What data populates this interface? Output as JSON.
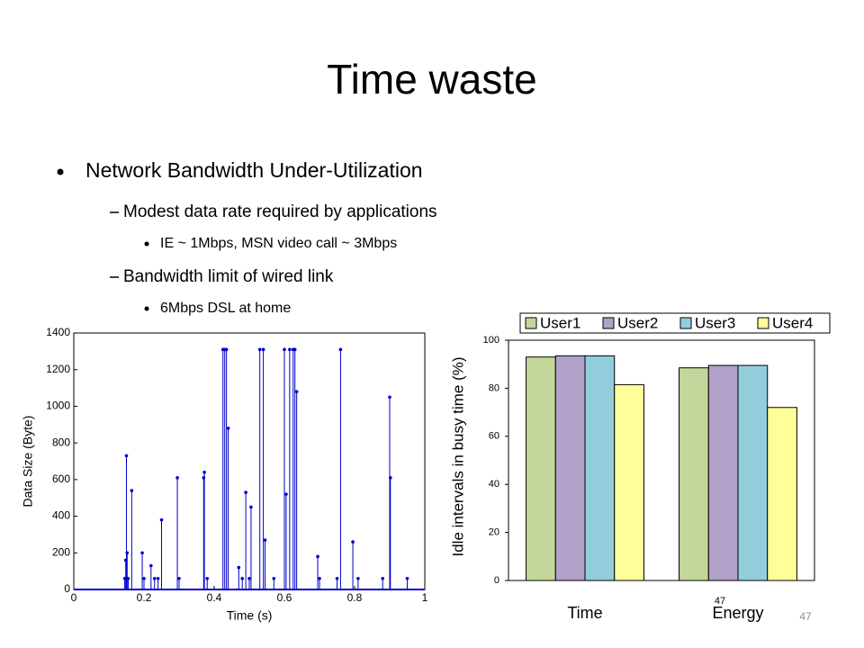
{
  "slide": {
    "title": "Time waste",
    "bullets": [
      "Network Bandwidth Under-Utilization",
      "Modest data rate required by applications",
      "IE ~ 1Mbps, MSN video call ~ 3Mbps",
      "Bandwidth limit of wired link",
      "6Mbps DSL at home"
    ],
    "overlay_number": "47",
    "page_number": "47"
  },
  "chart_data": [
    {
      "type": "stem",
      "x_label": "Time (s)",
      "y_label": "Data Size (Byte)",
      "color": "#0000c8",
      "x": [
        0.145,
        0.148,
        0.15,
        0.152,
        0.155,
        0.165,
        0.195,
        0.2,
        0.22,
        0.23,
        0.24,
        0.25,
        0.295,
        0.3,
        0.37,
        0.372,
        0.38,
        0.425,
        0.43,
        0.435,
        0.44,
        0.47,
        0.48,
        0.49,
        0.5,
        0.505,
        0.53,
        0.54,
        0.545,
        0.57,
        0.6,
        0.605,
        0.615,
        0.625,
        0.63,
        0.635,
        0.695,
        0.7,
        0.75,
        0.76,
        0.795,
        0.81,
        0.88,
        0.9,
        0.902,
        0.95
      ],
      "values": [
        60,
        160,
        730,
        200,
        60,
        540,
        200,
        60,
        130,
        60,
        60,
        380,
        610,
        60,
        610,
        640,
        60,
        1310,
        1310,
        1310,
        880,
        120,
        60,
        530,
        60,
        450,
        1310,
        1310,
        270,
        60,
        1310,
        520,
        1310,
        1310,
        1310,
        1080,
        180,
        60,
        60,
        1310,
        260,
        60,
        60,
        1050,
        610,
        60
      ],
      "xlim": [
        0,
        1
      ],
      "xticks": [
        0,
        0.2,
        0.4,
        0.6,
        0.8,
        1
      ],
      "ylim": [
        0,
        1400
      ],
      "yticks": [
        0,
        200,
        400,
        600,
        800,
        1000,
        1200,
        1400
      ],
      "grid": false
    },
    {
      "type": "bar",
      "y_label": "Idle intervals in busy time (%)",
      "categories": [
        "Time",
        "Energy"
      ],
      "series": [
        {
          "name": "User1",
          "color": "#c4d79b",
          "values": [
            93,
            88.5
          ]
        },
        {
          "name": "User2",
          "color": "#b1a0c7",
          "values": [
            93.5,
            89.5
          ]
        },
        {
          "name": "User3",
          "color": "#92cddc",
          "values": [
            93.5,
            89.5
          ]
        },
        {
          "name": "User4",
          "color": "#ffff99",
          "values": [
            81.5,
            72
          ]
        }
      ],
      "ylim": [
        0,
        100
      ],
      "yticks": [
        0,
        20,
        40,
        60,
        80,
        100
      ],
      "grid": false,
      "legend": "top"
    }
  ]
}
